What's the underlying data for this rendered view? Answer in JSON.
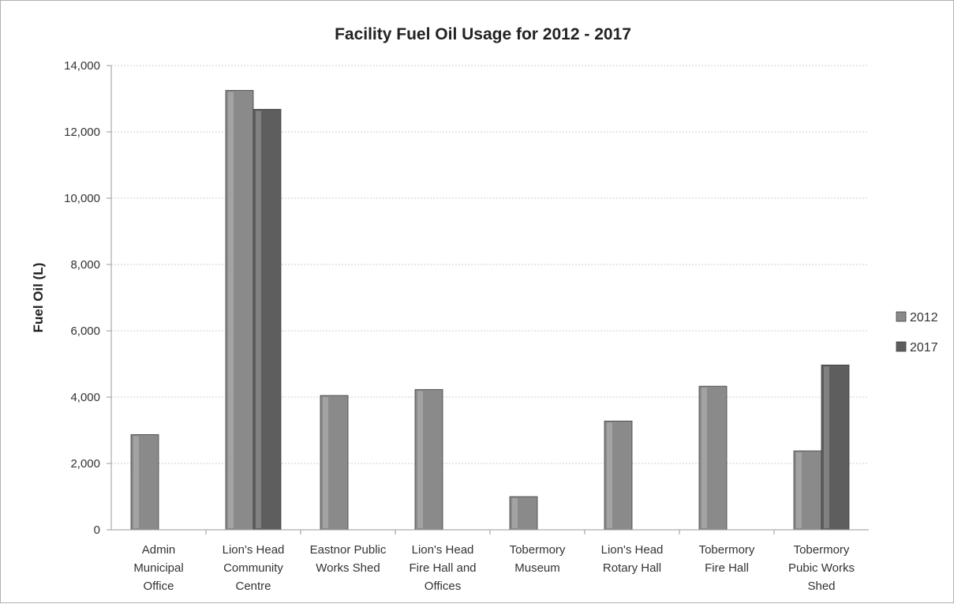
{
  "chart_data": {
    "type": "bar",
    "title": "Facility Fuel Oil Usage for 2012 - 2017",
    "xlabel": "",
    "ylabel": "Fuel Oil (L)",
    "ylim": [
      0,
      14000
    ],
    "yticks": [
      "0",
      "2,000",
      "4,000",
      "6,000",
      "8,000",
      "10,000",
      "12,000",
      "14,000"
    ],
    "grid": true,
    "legend_position": "right",
    "categories": [
      [
        "Admin",
        "Municipal",
        "Office"
      ],
      [
        "Lion's Head",
        "Community",
        "Centre"
      ],
      [
        "Eastnor Public",
        "Works Shed"
      ],
      [
        "Lion's Head",
        "Fire Hall and",
        "Offices"
      ],
      [
        "Tobermory",
        "Museum"
      ],
      [
        "Lion's Head",
        "Rotary Hall"
      ],
      [
        "Tobermory",
        "Fire Hall"
      ],
      [
        "Tobermory",
        "Pubic Works",
        "Shed"
      ]
    ],
    "series": [
      {
        "name": "2012",
        "color": "#8a8a8a",
        "values": [
          2870,
          13250,
          4050,
          4230,
          1000,
          3280,
          4330,
          2380
        ]
      },
      {
        "name": "2017",
        "color": "#5e5e5e",
        "values": [
          null,
          12680,
          null,
          null,
          null,
          null,
          null,
          4970
        ]
      }
    ]
  }
}
